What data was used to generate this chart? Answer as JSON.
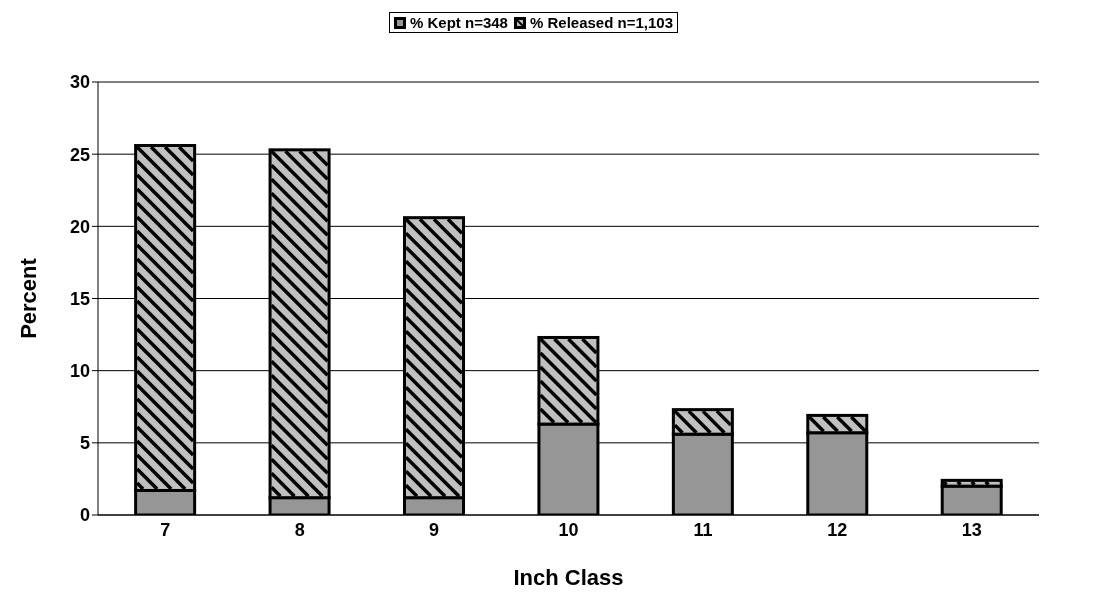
{
  "chart_data": {
    "type": "bar",
    "stacked": true,
    "xlabel": "Inch Class",
    "ylabel": "Percent",
    "categories": [
      "7",
      "8",
      "9",
      "10",
      "11",
      "12",
      "13"
    ],
    "series": [
      {
        "name": "% Kept n=348",
        "color": "#969696",
        "values": [
          1.7,
          1.2,
          1.2,
          6.3,
          5.6,
          5.7,
          2.0
        ]
      },
      {
        "name": "% Released n=1,103",
        "color": "#c0c0c0",
        "values": [
          23.9,
          24.1,
          19.4,
          6.0,
          1.7,
          1.2,
          0.4
        ]
      }
    ],
    "ylim": [
      0,
      30
    ],
    "yticks": [
      0,
      5,
      10,
      15,
      20,
      25,
      30
    ],
    "grid": "y",
    "legend": "top"
  }
}
